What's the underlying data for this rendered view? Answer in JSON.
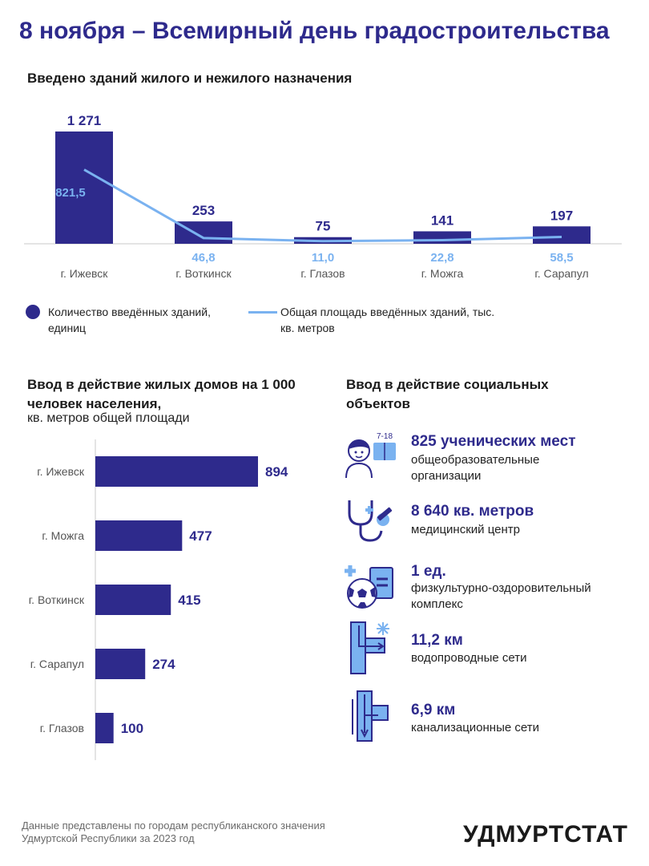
{
  "title": "8 ноября – Всемирный день градостроительства",
  "chart_data": [
    {
      "type": "bar",
      "title": "Введено зданий жилого и нежилого назначения",
      "categories": [
        "г. Ижевск",
        "г. Воткинск",
        "г. Глазов",
        "г. Можга",
        "г. Сарапул"
      ],
      "series": [
        {
          "name": "Количество введённых зданий, единиц",
          "type": "bar",
          "values": [
            1271,
            253,
            75,
            141,
            197
          ],
          "labels": [
            "1 271",
            "253",
            "75",
            "141",
            "197"
          ]
        },
        {
          "name": "Общая площадь введённых зданий, тыс. кв. метров",
          "type": "line",
          "values": [
            821.5,
            46.8,
            11.0,
            22.8,
            58.5
          ],
          "labels": [
            "821,5",
            "46,8",
            "11,0",
            "22,8",
            "58,5"
          ]
        }
      ],
      "legend": "bottom",
      "colors": {
        "bar": "#2e2a8c",
        "line": "#7ab2f0"
      }
    },
    {
      "type": "bar",
      "orientation": "horizontal",
      "title": "Ввод в действие жилых домов на 1 000 человек населения,",
      "subtitle": "кв. метров общей площади",
      "categories": [
        "г. Ижевск",
        "г. Можга",
        "г. Воткинск",
        "г. Сарапул",
        "г. Глазов"
      ],
      "values": [
        894,
        477,
        415,
        274,
        100
      ],
      "colors": {
        "bar": "#2e2a8c"
      }
    }
  ],
  "social": {
    "title": "Ввод в действие социальных объектов",
    "items": [
      {
        "icon": "student-icon",
        "value": "825 ученических мест",
        "desc": "общеобразовательные организации",
        "badge": "7-18"
      },
      {
        "icon": "stethoscope-icon",
        "value": "8 640 кв. метров",
        "desc": "медицинский центр"
      },
      {
        "icon": "sports-ball-icon",
        "value": "1 ед.",
        "desc": "физкультурно-оздоровительный комплекс"
      },
      {
        "icon": "water-pipe-icon",
        "value": "11,2 км",
        "desc": "водопроводные сети"
      },
      {
        "icon": "sewer-pipe-icon",
        "value": "6,9 км",
        "desc": "канализационные сети"
      }
    ]
  },
  "footnote": "Данные представлены по городам республиканского значения Удмуртской Республики за 2023 год",
  "brand": "УДМУРТСТАТ"
}
